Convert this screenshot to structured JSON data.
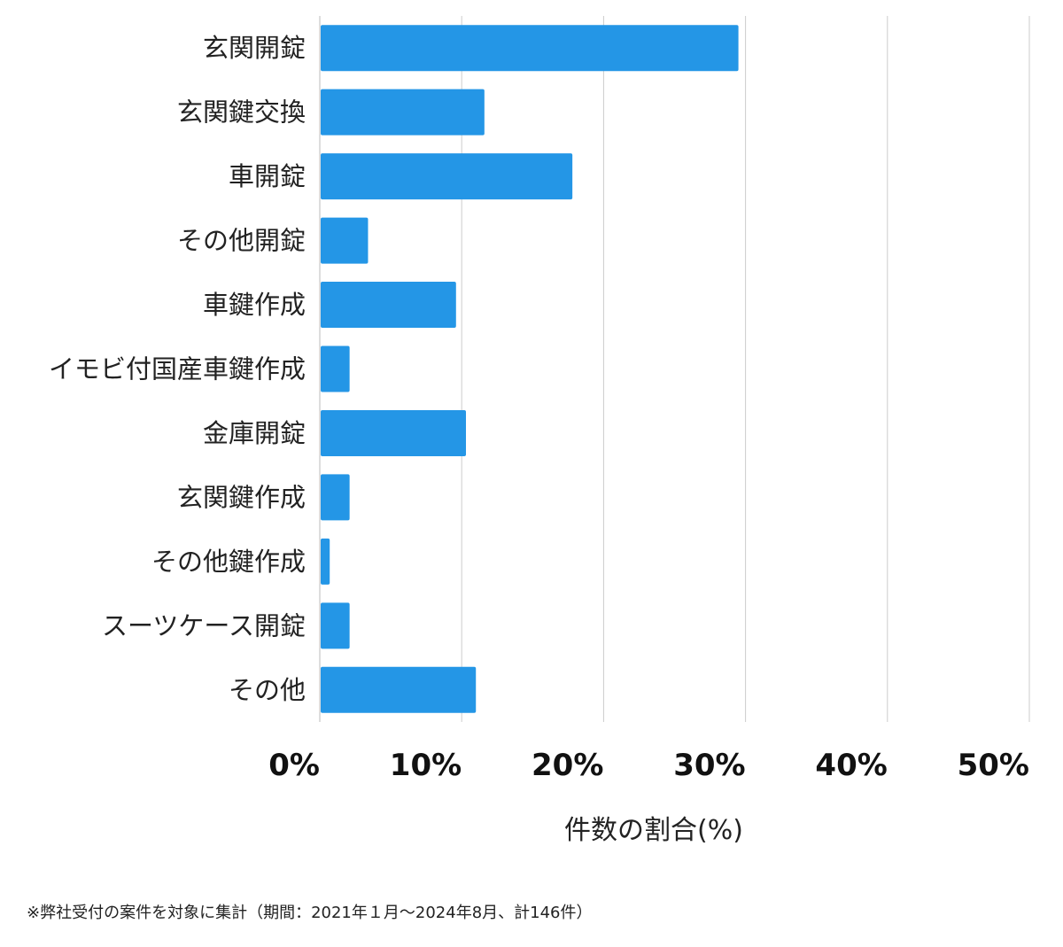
{
  "chart_data": {
    "type": "bar",
    "orientation": "horizontal",
    "categories": [
      "玄関開錠",
      "玄関鍵交換",
      "車開錠",
      "その他開錠",
      "車鍵作成",
      "イモビ付国産車鍵作成",
      "金庫開錠",
      "玄関鍵作成",
      "その他鍵作成",
      "スーツケース開錠",
      "その他"
    ],
    "values": [
      29.5,
      11.6,
      17.8,
      3.4,
      9.6,
      2.1,
      10.3,
      2.1,
      0.7,
      2.1,
      11.0
    ],
    "xlabel": "件数の割合(%)",
    "ylabel": "",
    "xlim": [
      0,
      50
    ],
    "xticks": [
      0,
      10,
      20,
      30,
      40,
      50
    ],
    "xtick_labels": [
      "0%",
      "10%",
      "20%",
      "30%",
      "40%",
      "50%"
    ],
    "grid": "vertical",
    "bar_color": "#2496E6",
    "grid_color": "#cccccc"
  },
  "footnote": "※弊社受付の案件を対象に集計（期間：2021年１月〜2024年8月、計146件）"
}
